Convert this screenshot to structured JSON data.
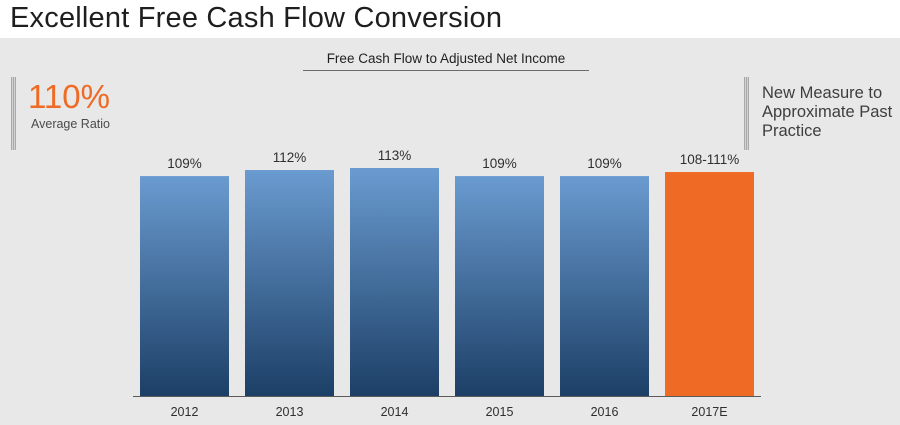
{
  "header": {
    "title": "Excellent Free Cash Flow Conversion"
  },
  "callout": {
    "value": "110%",
    "label": "Average Ratio"
  },
  "note": {
    "text": "New Measure to Approximate Past Practice"
  },
  "colors": {
    "accent": "#ee6a25",
    "bar_top": "#6a9bd0",
    "bar_bottom": "#1c3f66"
  },
  "chart_data": {
    "type": "bar",
    "title": "Free Cash Flow to Adjusted Net Income",
    "xlabel": "",
    "ylabel": "",
    "categories": [
      "2012",
      "2013",
      "2014",
      "2015",
      "2016",
      "2017E"
    ],
    "values": [
      109,
      112,
      113,
      109,
      109,
      111
    ],
    "value_labels": [
      "109%",
      "112%",
      "113%",
      "109%",
      "109%",
      "108-111%"
    ],
    "highlight": [
      false,
      false,
      false,
      false,
      false,
      true
    ],
    "ylim": [
      0,
      113
    ],
    "grid": false,
    "legend": "none"
  }
}
